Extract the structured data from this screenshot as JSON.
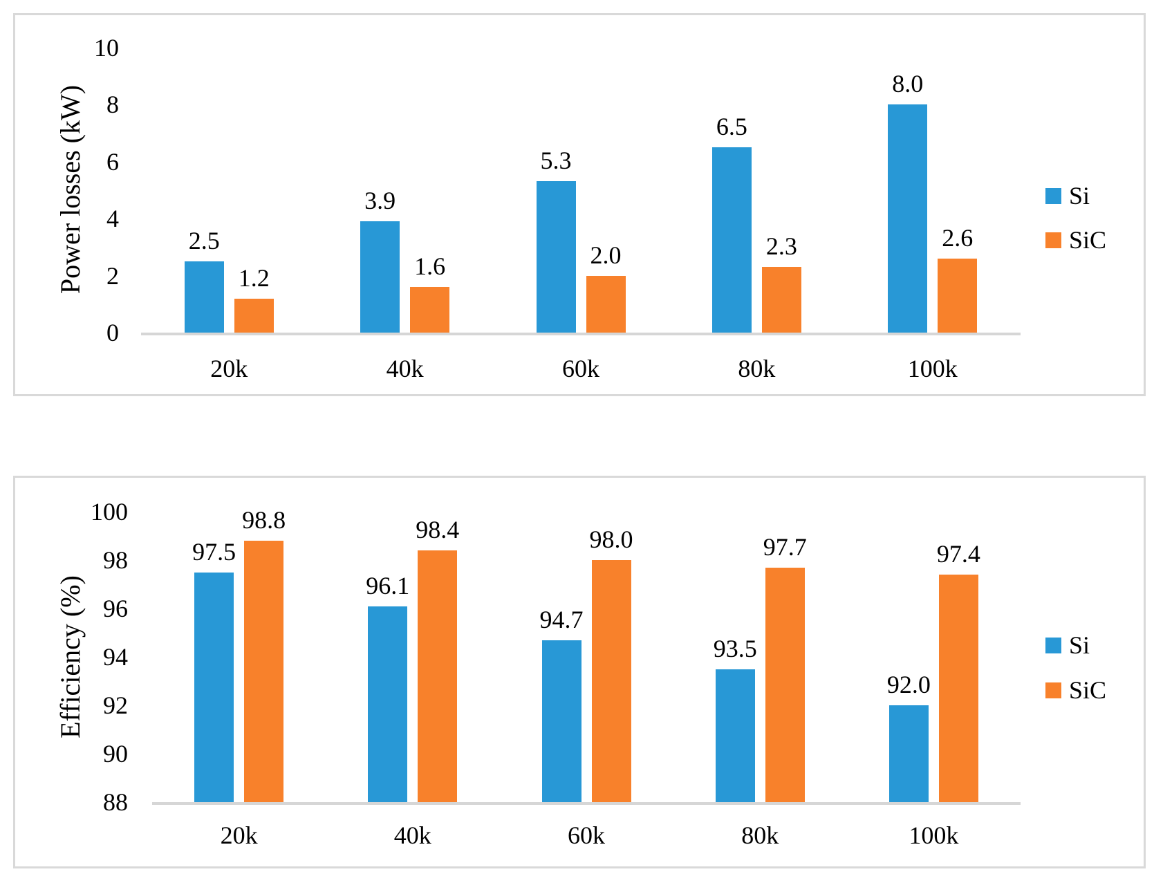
{
  "chart_data": [
    {
      "type": "bar",
      "title": "",
      "xlabel": "",
      "ylabel": "Power losses (kW)",
      "categories": [
        "20k",
        "40k",
        "60k",
        "80k",
        "100k"
      ],
      "series": [
        {
          "name": "Si",
          "color": "#2898D6",
          "values": [
            2.5,
            3.9,
            5.3,
            6.5,
            8.0
          ],
          "value_labels": [
            "2.5",
            "3.9",
            "5.3",
            "6.5",
            "8.0"
          ]
        },
        {
          "name": "SiC",
          "color": "#F8812B",
          "values": [
            1.2,
            1.6,
            2.0,
            2.3,
            2.6
          ],
          "value_labels": [
            "1.2",
            "1.6",
            "2.0",
            "2.3",
            "2.6"
          ]
        }
      ],
      "ylim": [
        0,
        10
      ],
      "yticks": [
        0,
        2,
        4,
        6,
        8,
        10
      ],
      "grid": false,
      "legend_position": "right"
    },
    {
      "type": "bar",
      "title": "",
      "xlabel": "",
      "ylabel": "Efficiency (%)",
      "categories": [
        "20k",
        "40k",
        "60k",
        "80k",
        "100k"
      ],
      "series": [
        {
          "name": "Si",
          "color": "#2898D6",
          "values": [
            97.5,
            96.1,
            94.7,
            93.5,
            92.0
          ],
          "value_labels": [
            "97.5",
            "96.1",
            "94.7",
            "93.5",
            "92.0"
          ]
        },
        {
          "name": "SiC",
          "color": "#F8812B",
          "values": [
            98.8,
            98.4,
            98.0,
            97.7,
            97.4
          ],
          "value_labels": [
            "98.8",
            "98.4",
            "98.0",
            "97.7",
            "97.4"
          ]
        }
      ],
      "ylim": [
        88,
        100
      ],
      "yticks": [
        88,
        90,
        92,
        94,
        96,
        98,
        100
      ],
      "grid": false,
      "legend_position": "right"
    }
  ],
  "colors": {
    "si": "#2898D6",
    "sic": "#F8812B",
    "axis_line": "#d6d6d6",
    "panel_border": "#d9d9d9",
    "text": "#000000"
  }
}
